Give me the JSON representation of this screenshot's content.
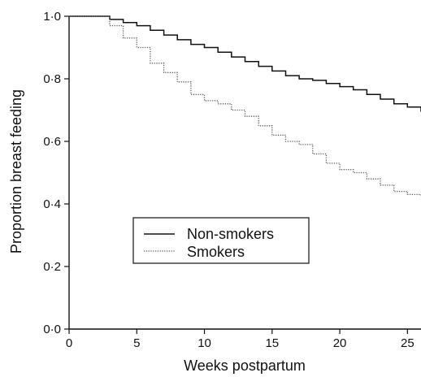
{
  "chart_data": {
    "type": "line",
    "title": "",
    "xlabel": "Weeks postpartum",
    "ylabel": "Proportion breast feeding",
    "xlim": [
      0,
      26
    ],
    "ylim": [
      0,
      1
    ],
    "x_ticks": [
      0,
      5,
      10,
      15,
      20,
      25
    ],
    "x_tick_labels": [
      "0",
      "5",
      "10",
      "15",
      "20",
      "25"
    ],
    "y_ticks": [
      0,
      0.2,
      0.4,
      0.6,
      0.8,
      1.0
    ],
    "y_tick_labels": [
      "0·0",
      "0·2",
      "0·4",
      "0·6",
      "0·8",
      "1·0"
    ],
    "grid": false,
    "legend_position": "center-left",
    "series": [
      {
        "name": "Non-smokers",
        "style": "solid",
        "color": "#111111",
        "x": [
          0,
          2,
          3,
          4,
          5,
          6,
          7,
          8,
          9,
          10,
          11,
          12,
          13,
          14,
          15,
          16,
          17,
          18,
          19,
          20,
          21,
          22,
          23,
          24,
          25,
          26
        ],
        "y": [
          1.0,
          1.0,
          0.99,
          0.98,
          0.97,
          0.955,
          0.94,
          0.925,
          0.91,
          0.9,
          0.885,
          0.87,
          0.855,
          0.84,
          0.825,
          0.81,
          0.8,
          0.795,
          0.785,
          0.775,
          0.765,
          0.75,
          0.735,
          0.72,
          0.71,
          0.695
        ]
      },
      {
        "name": "Smokers",
        "style": "dotted",
        "color": "#555555",
        "x": [
          0,
          2,
          3,
          4,
          5,
          6,
          7,
          8,
          9,
          10,
          11,
          12,
          13,
          14,
          15,
          16,
          17,
          18,
          19,
          20,
          21,
          22,
          23,
          24,
          25,
          26
        ],
        "y": [
          1.0,
          1.0,
          0.97,
          0.93,
          0.9,
          0.85,
          0.82,
          0.79,
          0.75,
          0.73,
          0.72,
          0.7,
          0.68,
          0.65,
          0.62,
          0.6,
          0.59,
          0.56,
          0.53,
          0.51,
          0.5,
          0.48,
          0.46,
          0.44,
          0.43,
          0.425
        ]
      }
    ]
  }
}
